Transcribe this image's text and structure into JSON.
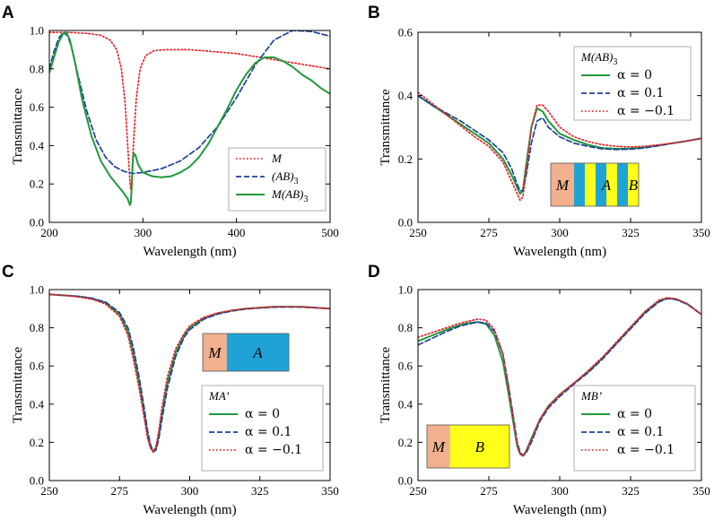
{
  "chart_data": [
    {
      "panel": "A",
      "type": "line",
      "xlabel": "Wavelength (nm)",
      "ylabel": "Transmittance",
      "xlim": [
        200,
        500
      ],
      "ylim": [
        0,
        1.0
      ],
      "xticks": [
        200,
        300,
        400,
        500
      ],
      "xtick_labels": [
        "200",
        "300",
        "400",
        "500"
      ],
      "yticks": [
        0,
        0.2,
        0.4,
        0.6,
        0.8,
        1.0
      ],
      "ytick_labels": [
        "0.0",
        "0.2",
        "0.4",
        "0.6",
        "0.8",
        "1.0"
      ],
      "legend": {
        "title": "",
        "position": "bottom-right"
      },
      "inset": null,
      "series": [
        {
          "name": "M",
          "label_parts": [
            "M"
          ],
          "color": "#e8232a",
          "dash": "dotted",
          "x": [
            200,
            220,
            240,
            255,
            265,
            272,
            277,
            281,
            284,
            286,
            287,
            288,
            290,
            293,
            297,
            303,
            312,
            325,
            350,
            400,
            450,
            500
          ],
          "y": [
            0.99,
            0.99,
            0.985,
            0.975,
            0.95,
            0.9,
            0.8,
            0.62,
            0.38,
            0.22,
            0.17,
            0.22,
            0.42,
            0.65,
            0.8,
            0.87,
            0.895,
            0.9,
            0.9,
            0.88,
            0.84,
            0.8
          ]
        },
        {
          "name": "(AB)3",
          "label_parts": [
            "(AB)",
            "3"
          ],
          "color": "#1f3f9e",
          "dash": "dashed",
          "x": [
            200,
            205,
            210,
            215,
            220,
            225,
            230,
            240,
            250,
            260,
            270,
            280,
            290,
            300,
            320,
            340,
            360,
            380,
            400,
            420,
            440,
            460,
            480,
            500
          ],
          "y": [
            0.8,
            0.89,
            0.96,
            0.99,
            0.97,
            0.89,
            0.78,
            0.58,
            0.43,
            0.34,
            0.29,
            0.265,
            0.255,
            0.26,
            0.28,
            0.32,
            0.39,
            0.5,
            0.65,
            0.82,
            0.95,
            1.0,
            0.995,
            0.97
          ]
        },
        {
          "name": "M(AB)3",
          "label_parts": [
            "M(AB)",
            "3"
          ],
          "color": "#1f9a3a",
          "dash": "solid",
          "x": [
            200,
            205,
            210,
            215,
            218,
            222,
            228,
            235,
            245,
            255,
            265,
            275,
            280,
            284,
            286,
            287,
            288,
            289,
            290,
            292,
            295,
            300,
            310,
            320,
            330,
            340,
            350,
            360,
            370,
            380,
            390,
            400,
            410,
            420,
            430,
            440,
            450,
            460,
            470,
            480,
            490,
            500
          ],
          "y": [
            0.78,
            0.86,
            0.94,
            0.985,
            0.99,
            0.95,
            0.82,
            0.64,
            0.45,
            0.32,
            0.24,
            0.18,
            0.15,
            0.12,
            0.09,
            0.1,
            0.18,
            0.3,
            0.36,
            0.35,
            0.3,
            0.26,
            0.24,
            0.235,
            0.24,
            0.26,
            0.29,
            0.34,
            0.41,
            0.5,
            0.59,
            0.69,
            0.77,
            0.83,
            0.86,
            0.86,
            0.84,
            0.81,
            0.77,
            0.74,
            0.7,
            0.67
          ]
        }
      ]
    },
    {
      "panel": "B",
      "type": "line",
      "xlabel": "Wavelength (nm)",
      "ylabel": "Transmittance",
      "xlim": [
        250,
        350
      ],
      "ylim": [
        0,
        0.6
      ],
      "xticks": [
        250,
        275,
        300,
        325,
        350
      ],
      "xtick_labels": [
        "250",
        "275",
        "300",
        "325",
        "350"
      ],
      "yticks": [
        0,
        0.2,
        0.4,
        0.6
      ],
      "ytick_labels": [
        "0.0",
        "0.2",
        "0.4",
        "0.6"
      ],
      "legend": {
        "title": "M(AB)",
        "title_sub": "3",
        "position": "top-right"
      },
      "inset": {
        "labels": [
          "M",
          "A",
          "B"
        ],
        "layout": "multilayer"
      },
      "series": [
        {
          "name": "α = 0",
          "label_parts": [
            "α = 0"
          ],
          "color": "#1f9a3a",
          "dash": "solid",
          "x": [
            250,
            255,
            260,
            265,
            270,
            275,
            280,
            283,
            285,
            286,
            287,
            288,
            290,
            292,
            294,
            296,
            300,
            305,
            310,
            315,
            320,
            325,
            330,
            335,
            340,
            345,
            350
          ],
          "y": [
            0.4,
            0.37,
            0.34,
            0.31,
            0.28,
            0.25,
            0.2,
            0.15,
            0.11,
            0.09,
            0.1,
            0.17,
            0.3,
            0.36,
            0.35,
            0.32,
            0.28,
            0.26,
            0.245,
            0.235,
            0.232,
            0.233,
            0.237,
            0.243,
            0.25,
            0.257,
            0.265
          ]
        },
        {
          "name": "α = 0.1",
          "label_parts": [
            "α = 0.1"
          ],
          "color": "#1f3f9e",
          "dash": "dashed",
          "x": [
            250,
            255,
            260,
            265,
            270,
            275,
            280,
            283,
            285,
            286,
            287,
            288,
            290,
            292,
            294,
            296,
            300,
            305,
            310,
            315,
            320,
            325,
            330,
            335,
            340,
            345,
            350
          ],
          "y": [
            0.4,
            0.37,
            0.345,
            0.32,
            0.29,
            0.26,
            0.22,
            0.17,
            0.12,
            0.1,
            0.1,
            0.14,
            0.25,
            0.32,
            0.33,
            0.3,
            0.27,
            0.25,
            0.24,
            0.232,
            0.23,
            0.231,
            0.235,
            0.242,
            0.25,
            0.257,
            0.265
          ]
        },
        {
          "name": "α = −0.1",
          "label_parts": [
            "α = −0.1"
          ],
          "color": "#e8232a",
          "dash": "dotted",
          "x": [
            250,
            255,
            260,
            265,
            270,
            275,
            280,
            283,
            285,
            286,
            287,
            288,
            290,
            292,
            294,
            296,
            300,
            305,
            310,
            315,
            320,
            325,
            330,
            335,
            340,
            345,
            350
          ],
          "y": [
            0.41,
            0.375,
            0.34,
            0.305,
            0.27,
            0.24,
            0.19,
            0.13,
            0.09,
            0.07,
            0.08,
            0.15,
            0.3,
            0.37,
            0.37,
            0.35,
            0.3,
            0.27,
            0.255,
            0.245,
            0.24,
            0.238,
            0.24,
            0.245,
            0.25,
            0.257,
            0.265
          ]
        }
      ]
    },
    {
      "panel": "C",
      "type": "line",
      "xlabel": "Wavelength (nm)",
      "ylabel": "Transmittance",
      "xlim": [
        250,
        350
      ],
      "ylim": [
        0,
        1.0
      ],
      "xticks": [
        250,
        275,
        300,
        325,
        350
      ],
      "xtick_labels": [
        "250",
        "275",
        "300",
        "325",
        "350"
      ],
      "yticks": [
        0,
        0.2,
        0.4,
        0.6,
        0.8,
        1.0
      ],
      "ytick_labels": [
        "0.0",
        "0.2",
        "0.4",
        "0.6",
        "0.8",
        "1.0"
      ],
      "legend": {
        "title": "MA’",
        "title_sub": "",
        "position": "bottom-right"
      },
      "inset": {
        "labels": [
          "M",
          "A"
        ],
        "layout": "two"
      },
      "series": [
        {
          "name": "α = 0",
          "label_parts": [
            "α = 0"
          ],
          "color": "#1f9a3a",
          "dash": "solid",
          "x": [
            250,
            255,
            260,
            265,
            270,
            275,
            278,
            280,
            282,
            284,
            285,
            286,
            287,
            288,
            289,
            290,
            292,
            295,
            298,
            300,
            305,
            310,
            315,
            320,
            325,
            330,
            335,
            340,
            345,
            350
          ],
          "y": [
            0.975,
            0.97,
            0.965,
            0.955,
            0.93,
            0.87,
            0.78,
            0.66,
            0.51,
            0.33,
            0.24,
            0.18,
            0.15,
            0.17,
            0.24,
            0.34,
            0.51,
            0.67,
            0.76,
            0.8,
            0.85,
            0.875,
            0.89,
            0.9,
            0.905,
            0.91,
            0.91,
            0.91,
            0.905,
            0.9
          ]
        },
        {
          "name": "α = 0.1",
          "label_parts": [
            "α = 0.1"
          ],
          "color": "#1f3f9e",
          "dash": "dashed",
          "x": [
            250,
            255,
            260,
            265,
            270,
            275,
            278,
            280,
            282,
            284,
            285,
            286,
            287,
            288,
            289,
            290,
            292,
            295,
            298,
            300,
            305,
            310,
            315,
            320,
            325,
            330,
            335,
            340,
            345,
            350
          ],
          "y": [
            0.975,
            0.97,
            0.965,
            0.955,
            0.935,
            0.88,
            0.8,
            0.69,
            0.54,
            0.36,
            0.26,
            0.19,
            0.15,
            0.16,
            0.22,
            0.31,
            0.48,
            0.65,
            0.75,
            0.79,
            0.845,
            0.872,
            0.888,
            0.898,
            0.904,
            0.908,
            0.909,
            0.908,
            0.905,
            0.9
          ]
        },
        {
          "name": "α = −0.1",
          "label_parts": [
            "α = −0.1"
          ],
          "color": "#e8232a",
          "dash": "dotted",
          "x": [
            250,
            255,
            260,
            265,
            270,
            275,
            278,
            280,
            282,
            284,
            285,
            286,
            287,
            288,
            289,
            290,
            292,
            295,
            298,
            300,
            305,
            310,
            315,
            320,
            325,
            330,
            335,
            340,
            345,
            350
          ],
          "y": [
            0.975,
            0.97,
            0.962,
            0.95,
            0.925,
            0.86,
            0.76,
            0.63,
            0.48,
            0.31,
            0.22,
            0.17,
            0.15,
            0.18,
            0.26,
            0.37,
            0.54,
            0.69,
            0.77,
            0.81,
            0.855,
            0.878,
            0.892,
            0.9,
            0.906,
            0.91,
            0.91,
            0.909,
            0.905,
            0.9
          ]
        }
      ]
    },
    {
      "panel": "D",
      "type": "line",
      "xlabel": "Wavelength (nm)",
      "ylabel": "Transmittance",
      "xlim": [
        250,
        350
      ],
      "ylim": [
        0,
        1.0
      ],
      "xticks": [
        250,
        275,
        300,
        325,
        350
      ],
      "xtick_labels": [
        "250",
        "275",
        "300",
        "325",
        "350"
      ],
      "yticks": [
        0,
        0.2,
        0.4,
        0.6,
        0.8,
        1.0
      ],
      "ytick_labels": [
        "0.0",
        "0.2",
        "0.4",
        "0.6",
        "0.8",
        "1.0"
      ],
      "legend": {
        "title": "MB’",
        "title_sub": "",
        "position": "bottom-right"
      },
      "inset": {
        "labels": [
          "M",
          "B"
        ],
        "layout": "two"
      },
      "series": [
        {
          "name": "α = 0",
          "label_parts": [
            "α = 0"
          ],
          "color": "#1f9a3a",
          "dash": "solid",
          "x": [
            250,
            255,
            260,
            265,
            268,
            271,
            274,
            277,
            280,
            282,
            284,
            285,
            286,
            287,
            288,
            290,
            293,
            296,
            300,
            305,
            310,
            315,
            320,
            325,
            330,
            335,
            338,
            341,
            345,
            350
          ],
          "y": [
            0.73,
            0.76,
            0.79,
            0.815,
            0.825,
            0.83,
            0.82,
            0.76,
            0.62,
            0.45,
            0.27,
            0.18,
            0.14,
            0.13,
            0.15,
            0.22,
            0.32,
            0.39,
            0.45,
            0.51,
            0.57,
            0.64,
            0.72,
            0.8,
            0.88,
            0.94,
            0.955,
            0.95,
            0.925,
            0.87
          ]
        },
        {
          "name": "α = 0.1",
          "label_parts": [
            "α = 0.1"
          ],
          "color": "#1f3f9e",
          "dash": "dashed",
          "x": [
            250,
            255,
            260,
            265,
            268,
            271,
            274,
            277,
            280,
            282,
            284,
            285,
            286,
            287,
            288,
            290,
            293,
            296,
            300,
            305,
            310,
            315,
            320,
            325,
            330,
            335,
            338,
            341,
            345,
            350
          ],
          "y": [
            0.71,
            0.745,
            0.78,
            0.81,
            0.82,
            0.83,
            0.825,
            0.78,
            0.66,
            0.49,
            0.3,
            0.2,
            0.15,
            0.13,
            0.14,
            0.2,
            0.31,
            0.38,
            0.44,
            0.505,
            0.565,
            0.635,
            0.715,
            0.795,
            0.875,
            0.935,
            0.953,
            0.948,
            0.923,
            0.87
          ]
        },
        {
          "name": "α = −0.1",
          "label_parts": [
            "α = −0.1"
          ],
          "color": "#e8232a",
          "dash": "dotted",
          "x": [
            250,
            255,
            260,
            265,
            268,
            271,
            274,
            277,
            280,
            282,
            284,
            285,
            286,
            287,
            288,
            290,
            293,
            296,
            300,
            305,
            310,
            315,
            320,
            325,
            330,
            335,
            338,
            341,
            345,
            350
          ],
          "y": [
            0.75,
            0.775,
            0.8,
            0.825,
            0.835,
            0.845,
            0.84,
            0.79,
            0.66,
            0.48,
            0.29,
            0.19,
            0.14,
            0.13,
            0.15,
            0.21,
            0.32,
            0.39,
            0.45,
            0.51,
            0.575,
            0.645,
            0.725,
            0.805,
            0.885,
            0.945,
            0.957,
            0.952,
            0.926,
            0.87
          ]
        }
      ]
    }
  ],
  "legend_styles": {
    "inset_M_color": "#f2b08e",
    "inset_A_color": "#1fa3d6",
    "inset_B_color": "#ffff1a"
  }
}
